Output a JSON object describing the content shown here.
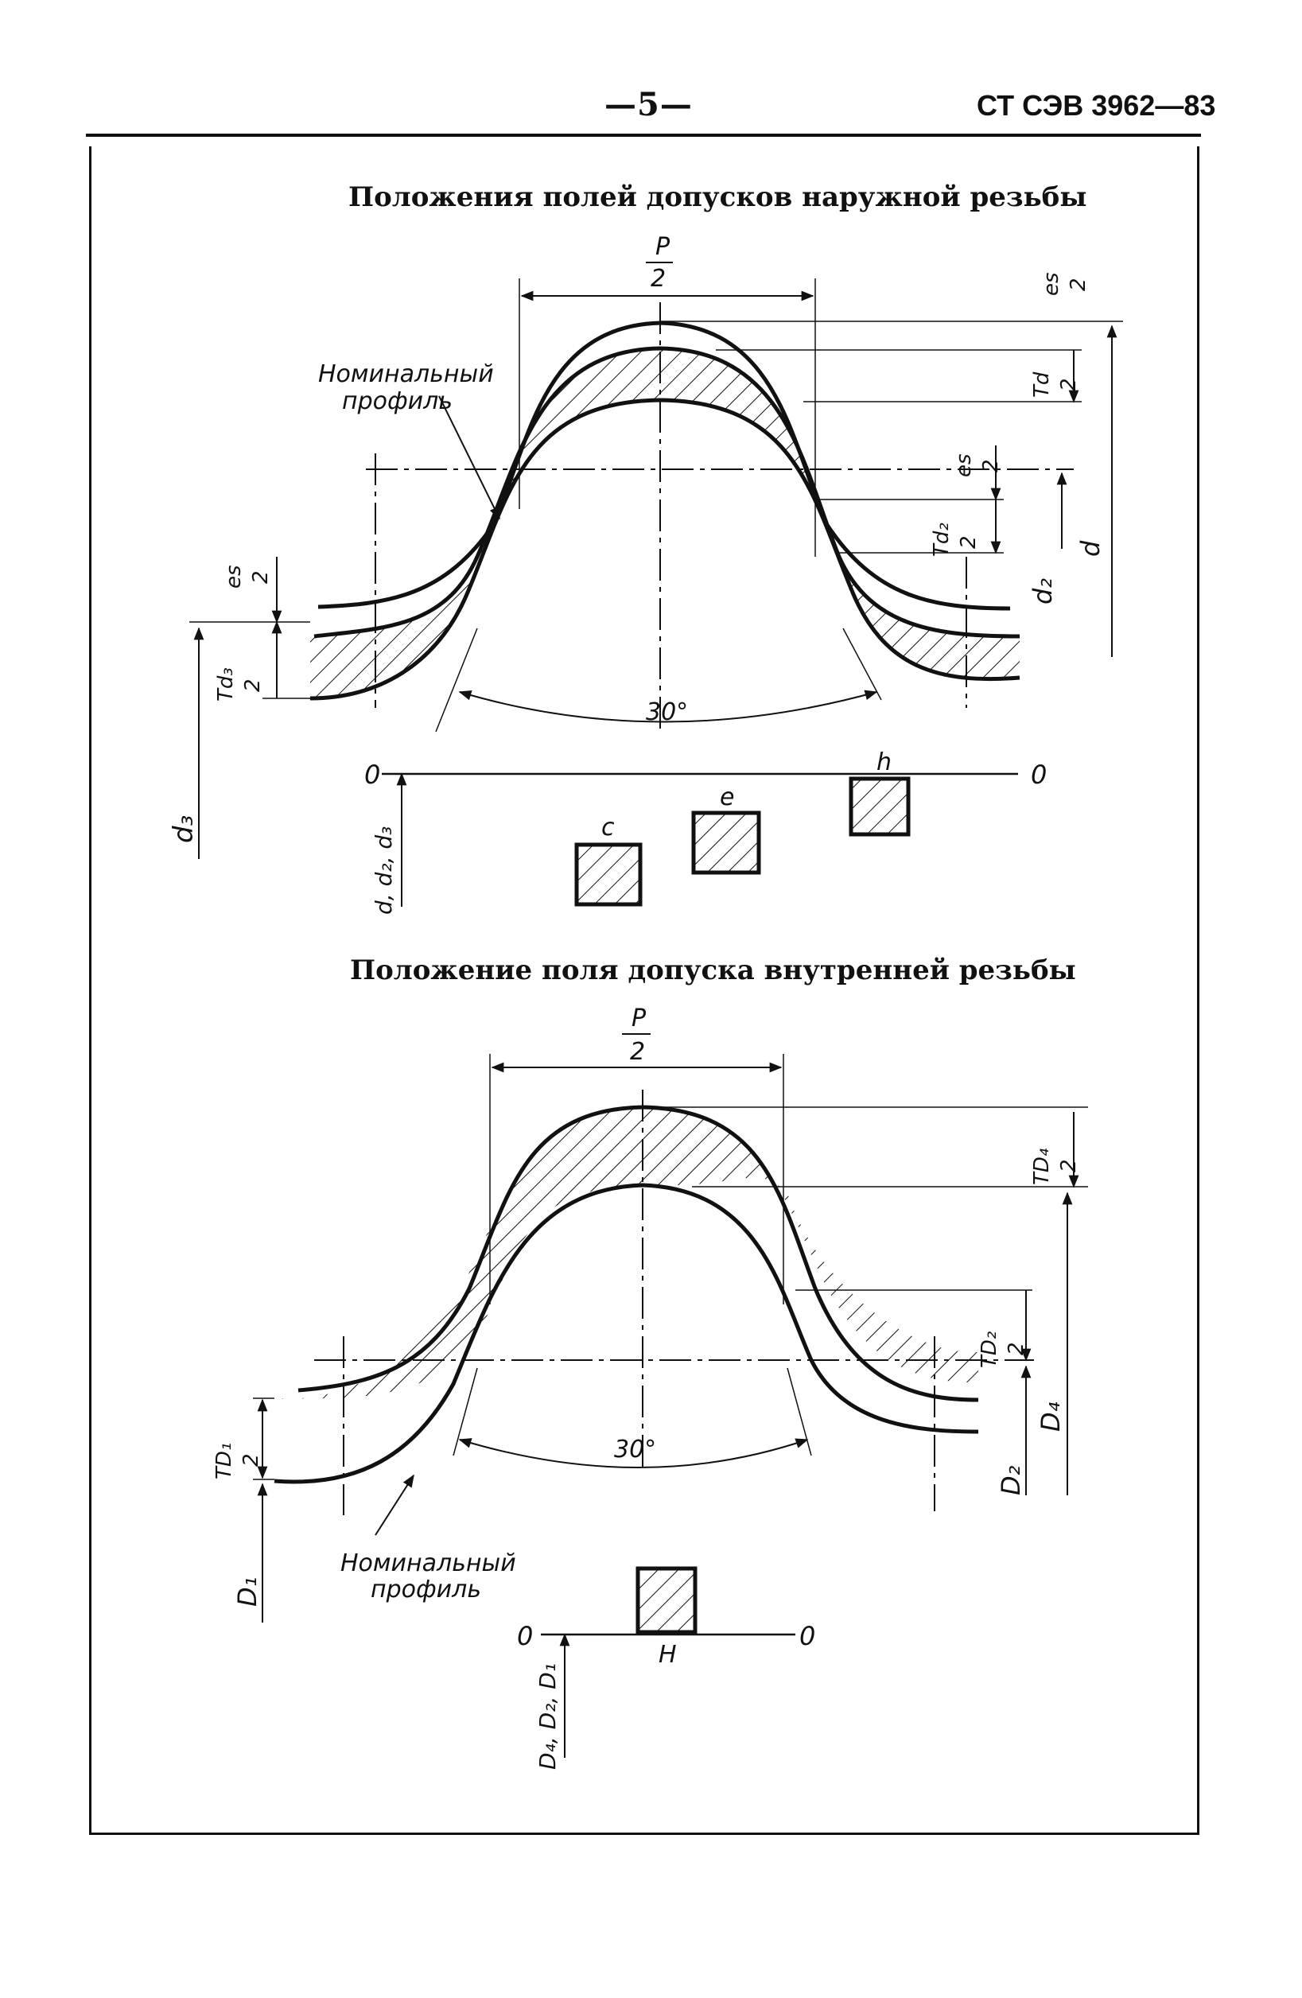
{
  "header": {
    "page_number": "—5—",
    "document_code": "СТ СЭВ 3962—83"
  },
  "figure_external": {
    "title": "Положения полей допусков наружной резьбы",
    "nominal_profile_label": [
      "Номинальный",
      "профиль"
    ],
    "pitch_label": [
      "P",
      "2"
    ],
    "angle_label": "30°",
    "dim_labels": {
      "es_top": [
        "es",
        "2"
      ],
      "Td": [
        "Td",
        "2"
      ],
      "es_mid": [
        "es",
        "2"
      ],
      "Td2": [
        "Td₂",
        "2"
      ],
      "d": "d",
      "d2": "d₂",
      "es_left": [
        "es",
        "2"
      ],
      "Td3": [
        "Td₃",
        "2"
      ],
      "d3": "d₃"
    },
    "zero_line_labels": [
      "0",
      "0"
    ],
    "axis_label": "d, d₂, d₃",
    "tolerance_positions": [
      "c",
      "e",
      "h"
    ]
  },
  "figure_internal": {
    "title": "Положение поля допуска внутренней резьбы",
    "nominal_profile_label": [
      "Номинальный",
      "профиль"
    ],
    "pitch_label": [
      "P",
      "2"
    ],
    "angle_label": "30°",
    "dim_labels": {
      "TD4": [
        "TD₄",
        "2"
      ],
      "TD2": [
        "TD₂",
        "2"
      ],
      "D4": "D₄",
      "D2": "D₂",
      "TD1": [
        "TD₁",
        "2"
      ],
      "D1": "D₁"
    },
    "zero_line_labels": [
      "0",
      "0"
    ],
    "axis_label": "D₄, D₂, D₁",
    "tolerance_positions": [
      "H"
    ]
  }
}
